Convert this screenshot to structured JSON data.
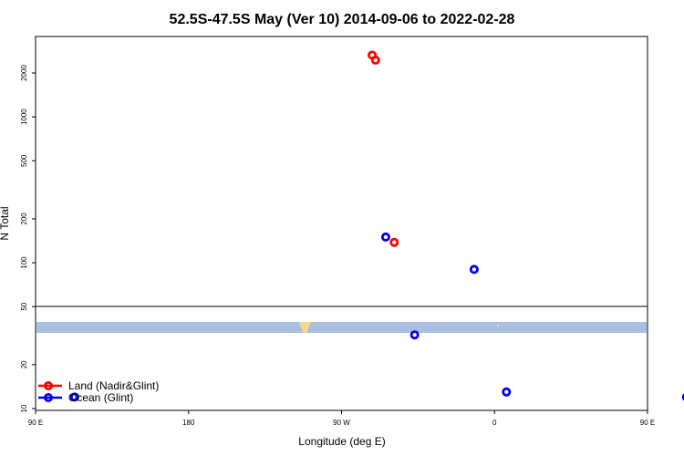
{
  "chart_data": {
    "type": "scatter",
    "title": "52.5S-47.5S May (Ver 10)   2014-09-06 to 2022-02-28",
    "xlabel": "Longitude (deg E)",
    "ylabel": "N Total",
    "y_scale": "log",
    "xlim": [
      90,
      450
    ],
    "ylim": [
      10,
      3200
    ],
    "x_ticks": [
      {
        "value": 90,
        "label": "90 E"
      },
      {
        "value": 180,
        "label": "180"
      },
      {
        "value": 270,
        "label": "90 W"
      },
      {
        "value": 360,
        "label": "0"
      },
      {
        "value": 450,
        "label": "90 E"
      },
      {
        "value": 540,
        "label": "180"
      }
    ],
    "y_ticks": [
      {
        "value": 10,
        "label": "10"
      },
      {
        "value": 20,
        "label": "20"
      },
      {
        "value": 50,
        "label": "50"
      },
      {
        "value": 100,
        "label": "100"
      },
      {
        "value": 200,
        "label": "200"
      },
      {
        "value": 500,
        "label": "500"
      },
      {
        "value": 1000,
        "label": "1000"
      },
      {
        "value": 2000,
        "label": "2000"
      }
    ],
    "series": [
      {
        "name": "Land (Nadir&Glint)",
        "color": "#ff0000",
        "points": [
          {
            "x": 288,
            "y": 2650
          },
          {
            "x": 290,
            "y": 2450
          },
          {
            "x": 301,
            "y": 138
          }
        ]
      },
      {
        "name": "Ocean (Glint)",
        "color": "#0000ee",
        "points": [
          {
            "x": 296,
            "y": 150
          },
          {
            "x": 348,
            "y": 90
          },
          {
            "x": 313,
            "y": 32
          },
          {
            "x": 113,
            "y": 12
          },
          {
            "x": 367,
            "y": 13
          },
          {
            "x": 473,
            "y": 12
          }
        ]
      }
    ],
    "legend_position": "bottom-left",
    "grid": false,
    "map_strip": {
      "ocean_color": "#a8bfe0",
      "land_color": "#f5d78c"
    }
  }
}
